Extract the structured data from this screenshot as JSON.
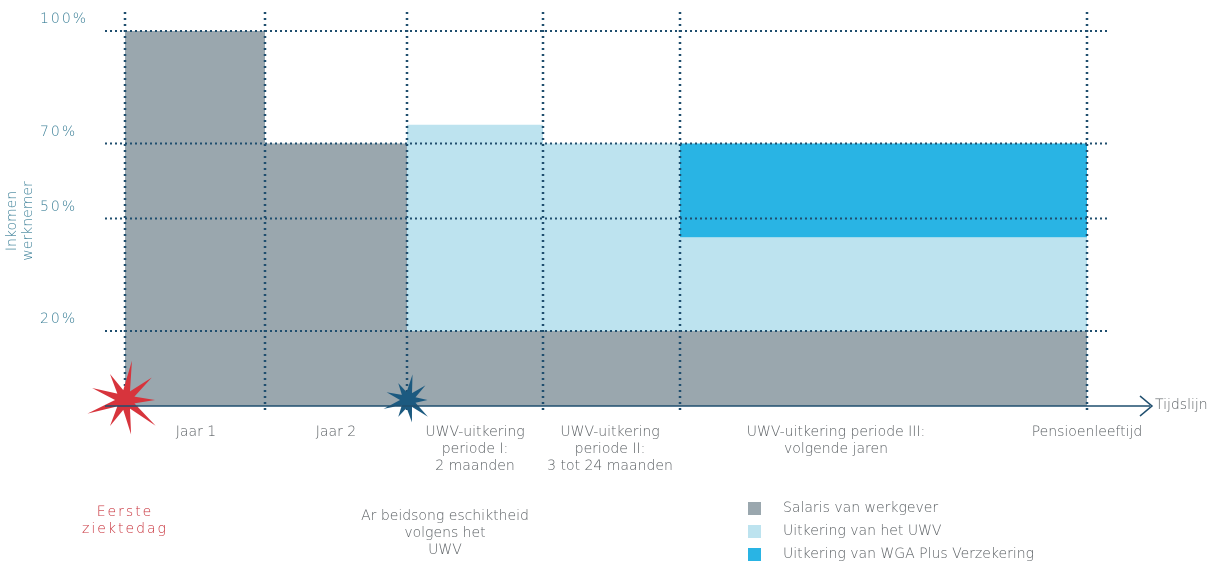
{
  "chart_data": {
    "type": "stacked-step",
    "y_label": "Inkomen werknemer",
    "x_label": "Tijdslijn",
    "categories": [
      "Jaar 1",
      "Jaar 2",
      "UWV-uitkering\nperiode I:\n2 maanden",
      "UWV-uitkering\nperiode II:\n3 tot 24 maanden",
      "UWV-uitkering periode III:\nvolgende jaren"
    ],
    "end_label": "Pensioenleeftijd",
    "series": [
      {
        "name": "Salaris van werkgever",
        "color": "#9aa7ae",
        "values": [
          100,
          70,
          20,
          20,
          20
        ]
      },
      {
        "name": "Uitkering van het UWV",
        "color": "#bde3ef",
        "values": [
          0,
          0,
          55,
          50,
          25
        ]
      },
      {
        "name": "Uitkering van WGA Plus Verzekering",
        "color": "#29b4e4",
        "values": [
          0,
          0,
          0,
          0,
          25
        ]
      }
    ],
    "ylim": [
      0,
      100
    ],
    "yticks": [
      {
        "value": 100,
        "label": "100%"
      },
      {
        "value": 70,
        "label": "70%"
      },
      {
        "value": 50,
        "label": "50%"
      },
      {
        "value": 20,
        "label": "20%"
      }
    ],
    "grid": true,
    "annotations": [
      "Eerste\nziektedag",
      "Ar beidsong eschiktheid\nvolgens het\nUWV"
    ]
  }
}
